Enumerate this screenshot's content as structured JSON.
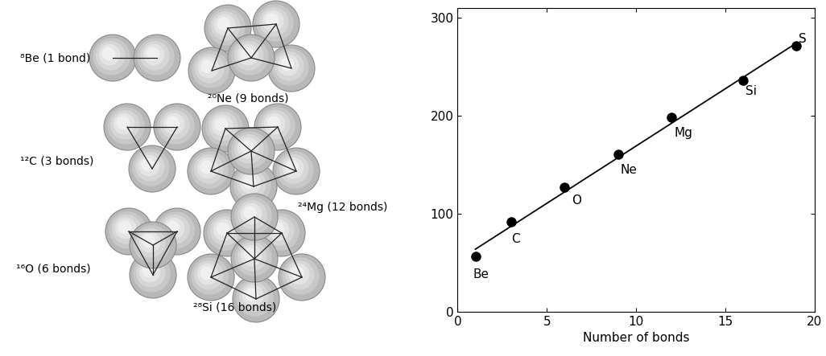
{
  "diagrams": [
    {
      "label": "⁸Be (1 bond)"
    },
    {
      "label": "¹²C (3 bonds)"
    },
    {
      "label": "¹⁶O (6 bonds)"
    },
    {
      "label": "²⁰Ne (9 bonds)"
    },
    {
      "label": "²⁴Mg (12 bonds)"
    },
    {
      "label": "²⁸Si (16 bonds)"
    }
  ],
  "chart_data": {
    "type": "scatter",
    "xlabel": "Number of bonds",
    "xlim": [
      0,
      20
    ],
    "xticks": [
      0,
      5,
      10,
      15,
      20
    ],
    "ylim": [
      0,
      310
    ],
    "yticks": [
      0,
      100,
      200,
      300
    ],
    "series": [
      {
        "type": "scatter",
        "marker": "circle",
        "color": "#000000",
        "x": [
          1,
          3,
          6,
          9,
          12,
          16,
          19
        ],
        "values": [
          56.5,
          92.2,
          127.6,
          160.6,
          198.3,
          236.5,
          271.8
        ],
        "point_labels": [
          "Be",
          "C",
          "O",
          "Ne",
          "Mg",
          "Si",
          "S"
        ]
      },
      {
        "type": "line",
        "line_style": "solid",
        "color": "#000000",
        "x": [
          1,
          19
        ],
        "values": [
          64.0,
          274.5
        ]
      }
    ]
  }
}
